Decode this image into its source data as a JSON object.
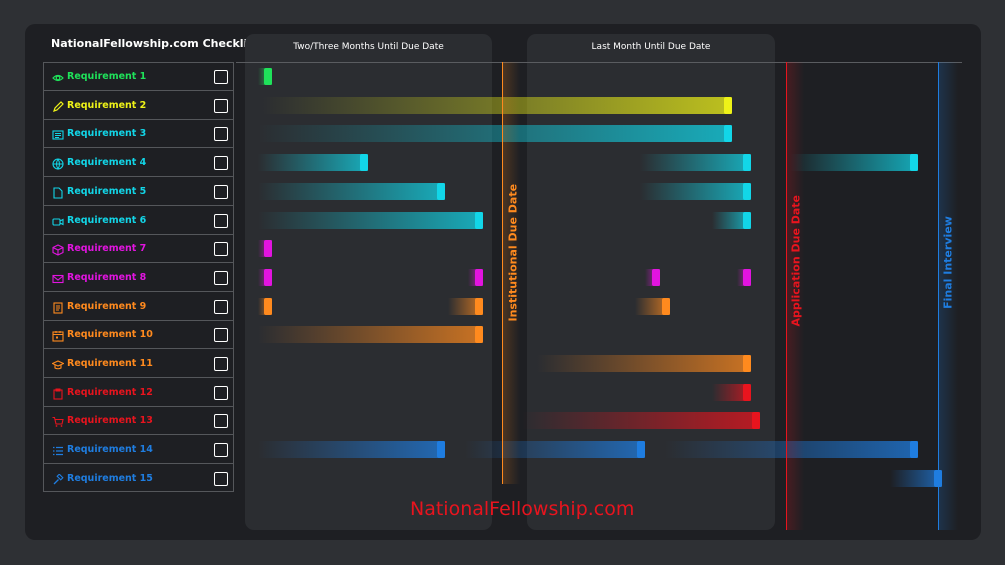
{
  "title": "NationalFellowship.com Checklist",
  "panels": {
    "left_title": "Two/Three Months Until Due Date",
    "right_title": "Last Month Until Due Date"
  },
  "deadlines": {
    "institutional": "Institutional Due Date",
    "application": "Application Due Date",
    "interview": "Final Interview"
  },
  "colors": {
    "institutional": "#ff8a1e",
    "application": "#e8141e",
    "interview": "#1f7de0"
  },
  "footer": "NationalFellowship.com",
  "requirements": [
    {
      "label": "Requirement 1",
      "color": "#1fe25a",
      "icon": "eye-icon"
    },
    {
      "label": "Requirement 2",
      "color": "#eef218",
      "icon": "pencil-icon"
    },
    {
      "label": "Requirement 3",
      "color": "#12d6e8",
      "icon": "list-icon"
    },
    {
      "label": "Requirement 4",
      "color": "#12d6e8",
      "icon": "globe-icon"
    },
    {
      "label": "Requirement 5",
      "color": "#12d6e8",
      "icon": "document-icon"
    },
    {
      "label": "Requirement 6",
      "color": "#12d6e8",
      "icon": "video-icon"
    },
    {
      "label": "Requirement 7",
      "color": "#e214e0",
      "icon": "cube-icon"
    },
    {
      "label": "Requirement 8",
      "color": "#e214e0",
      "icon": "envelope-icon"
    },
    {
      "label": "Requirement 9",
      "color": "#ff8a1e",
      "icon": "notebook-icon"
    },
    {
      "label": "Requirement 10",
      "color": "#ff8a1e",
      "icon": "calendar-icon"
    },
    {
      "label": "Requirement 11",
      "color": "#ff8a1e",
      "icon": "graduation-cap-icon"
    },
    {
      "label": "Requirement 12",
      "color": "#e8141e",
      "icon": "clipboard-icon"
    },
    {
      "label": "Requirement 13",
      "color": "#e8141e",
      "icon": "cart-icon"
    },
    {
      "label": "Requirement 14",
      "color": "#1f7de0",
      "icon": "checklist-icon"
    },
    {
      "label": "Requirement 15",
      "color": "#1f7de0",
      "icon": "gavel-icon"
    }
  ]
}
